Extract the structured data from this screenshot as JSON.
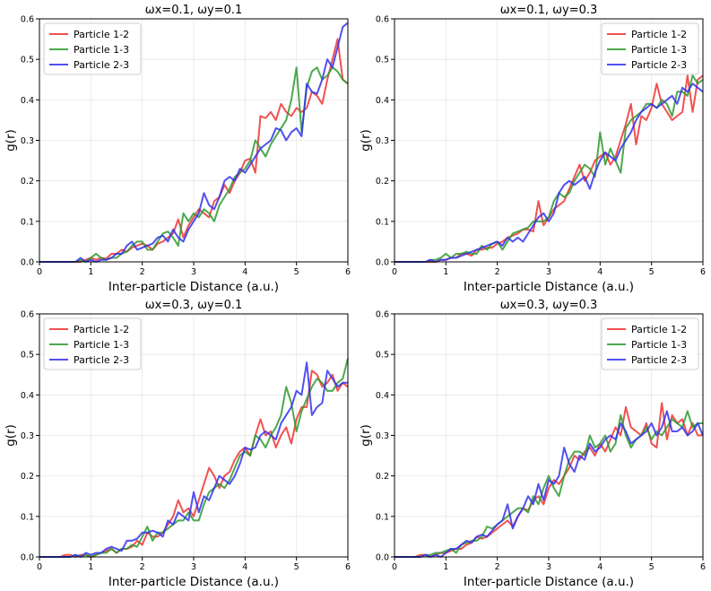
{
  "chart_data": [
    {
      "type": "line",
      "title": "ωx=0.1, ωy=0.1",
      "xlabel": "Inter-particle Distance (a.u.)",
      "ylabel": "g(r)",
      "xlim": [
        0,
        6
      ],
      "ylim": [
        0,
        0.6
      ],
      "xticks": [
        0,
        1,
        2,
        3,
        4,
        5,
        6
      ],
      "yticks": [
        0.0,
        0.1,
        0.2,
        0.3,
        0.4,
        0.5,
        0.6
      ],
      "grid": true,
      "legend": "top-left",
      "x": [
        0.0,
        0.1,
        0.2,
        0.3,
        0.4,
        0.5,
        0.6,
        0.7,
        0.8,
        0.9,
        1.0,
        1.1,
        1.2,
        1.3,
        1.4,
        1.5,
        1.6,
        1.7,
        1.8,
        1.9,
        2.0,
        2.1,
        2.2,
        2.3,
        2.4,
        2.5,
        2.6,
        2.7,
        2.8,
        2.9,
        3.0,
        3.1,
        3.2,
        3.3,
        3.4,
        3.5,
        3.6,
        3.7,
        3.8,
        3.9,
        4.0,
        4.1,
        4.2,
        4.3,
        4.4,
        4.5,
        4.6,
        4.7,
        4.8,
        4.9,
        5.0,
        5.1,
        5.2,
        5.3,
        5.4,
        5.5,
        5.6,
        5.7,
        5.8,
        5.9,
        6.0
      ],
      "series": [
        {
          "name": "Particle 1-2",
          "color": "#ee3333",
          "values": [
            0.0,
            0.0,
            0.0,
            0.0,
            0.0,
            0.0,
            0.0,
            0.0,
            0.0,
            0.005,
            0.01,
            0.005,
            0.01,
            0.008,
            0.02,
            0.02,
            0.03,
            0.025,
            0.035,
            0.04,
            0.045,
            0.04,
            0.03,
            0.045,
            0.05,
            0.06,
            0.07,
            0.105,
            0.06,
            0.09,
            0.11,
            0.13,
            0.12,
            0.11,
            0.15,
            0.16,
            0.19,
            0.17,
            0.2,
            0.22,
            0.25,
            0.255,
            0.22,
            0.36,
            0.355,
            0.37,
            0.35,
            0.39,
            0.37,
            0.36,
            0.38,
            0.37,
            0.38,
            0.42,
            0.41,
            0.39,
            0.45,
            0.5,
            0.55,
            0.45,
            0.44
          ]
        },
        {
          "name": "Particle 1-3",
          "color": "#2e9a2e",
          "values": [
            0.0,
            0.0,
            0.0,
            0.0,
            0.0,
            0.0,
            0.0,
            0.0,
            0.005,
            0.0,
            0.01,
            0.02,
            0.01,
            0.005,
            0.01,
            0.01,
            0.02,
            0.025,
            0.04,
            0.05,
            0.05,
            0.03,
            0.03,
            0.05,
            0.07,
            0.075,
            0.06,
            0.04,
            0.12,
            0.1,
            0.12,
            0.11,
            0.13,
            0.12,
            0.1,
            0.14,
            0.16,
            0.18,
            0.21,
            0.22,
            0.23,
            0.25,
            0.3,
            0.28,
            0.26,
            0.29,
            0.31,
            0.33,
            0.35,
            0.4,
            0.48,
            0.32,
            0.43,
            0.47,
            0.48,
            0.45,
            0.46,
            0.48,
            0.47,
            0.45,
            0.44
          ]
        },
        {
          "name": "Particle 2-3",
          "color": "#3333ee",
          "values": [
            0.0,
            0.0,
            0.0,
            0.0,
            0.0,
            0.0,
            0.0,
            0.0,
            0.01,
            0.0,
            0.005,
            0.0,
            0.005,
            0.005,
            0.01,
            0.02,
            0.02,
            0.04,
            0.05,
            0.03,
            0.035,
            0.04,
            0.045,
            0.06,
            0.065,
            0.05,
            0.08,
            0.06,
            0.05,
            0.08,
            0.1,
            0.12,
            0.17,
            0.14,
            0.13,
            0.16,
            0.2,
            0.21,
            0.2,
            0.23,
            0.22,
            0.24,
            0.26,
            0.28,
            0.29,
            0.3,
            0.33,
            0.325,
            0.3,
            0.32,
            0.33,
            0.31,
            0.44,
            0.42,
            0.415,
            0.45,
            0.5,
            0.48,
            0.53,
            0.58,
            0.59
          ]
        }
      ]
    },
    {
      "type": "line",
      "title": "ωx=0.1, ωy=0.3",
      "xlabel": "Inter-particle Distance (a.u.)",
      "ylabel": "g(r)",
      "xlim": [
        0,
        6
      ],
      "ylim": [
        0,
        0.6
      ],
      "xticks": [
        0,
        1,
        2,
        3,
        4,
        5,
        6
      ],
      "yticks": [
        0.0,
        0.1,
        0.2,
        0.3,
        0.4,
        0.5,
        0.6
      ],
      "grid": true,
      "legend": "top-right",
      "x": [
        0.0,
        0.1,
        0.2,
        0.3,
        0.4,
        0.5,
        0.6,
        0.7,
        0.8,
        0.9,
        1.0,
        1.1,
        1.2,
        1.3,
        1.4,
        1.5,
        1.6,
        1.7,
        1.8,
        1.9,
        2.0,
        2.1,
        2.2,
        2.3,
        2.4,
        2.5,
        2.6,
        2.7,
        2.8,
        2.9,
        3.0,
        3.1,
        3.2,
        3.3,
        3.4,
        3.5,
        3.6,
        3.7,
        3.8,
        3.9,
        4.0,
        4.1,
        4.2,
        4.3,
        4.4,
        4.5,
        4.6,
        4.7,
        4.8,
        4.9,
        5.0,
        5.1,
        5.2,
        5.3,
        5.4,
        5.5,
        5.6,
        5.7,
        5.8,
        5.9,
        6.0
      ],
      "series": [
        {
          "name": "Particle 1-2",
          "color": "#ee3333",
          "values": [
            0.0,
            0.0,
            0.0,
            0.0,
            0.0,
            0.0,
            0.0,
            0.0,
            0.0,
            0.005,
            0.005,
            0.01,
            0.01,
            0.02,
            0.02,
            0.015,
            0.03,
            0.03,
            0.035,
            0.035,
            0.045,
            0.05,
            0.06,
            0.065,
            0.07,
            0.08,
            0.08,
            0.075,
            0.15,
            0.09,
            0.11,
            0.13,
            0.14,
            0.15,
            0.18,
            0.21,
            0.24,
            0.2,
            0.22,
            0.25,
            0.26,
            0.27,
            0.24,
            0.26,
            0.3,
            0.34,
            0.39,
            0.29,
            0.36,
            0.35,
            0.38,
            0.44,
            0.39,
            0.37,
            0.35,
            0.36,
            0.37,
            0.46,
            0.37,
            0.45,
            0.46
          ]
        },
        {
          "name": "Particle 1-3",
          "color": "#2e9a2e",
          "values": [
            0.0,
            0.0,
            0.0,
            0.0,
            0.0,
            0.0,
            0.0,
            0.005,
            0.005,
            0.01,
            0.02,
            0.01,
            0.02,
            0.02,
            0.025,
            0.02,
            0.02,
            0.04,
            0.03,
            0.045,
            0.05,
            0.03,
            0.05,
            0.07,
            0.075,
            0.08,
            0.085,
            0.1,
            0.1,
            0.1,
            0.11,
            0.15,
            0.17,
            0.16,
            0.17,
            0.2,
            0.22,
            0.24,
            0.23,
            0.21,
            0.32,
            0.24,
            0.28,
            0.25,
            0.22,
            0.33,
            0.35,
            0.36,
            0.37,
            0.39,
            0.39,
            0.38,
            0.4,
            0.39,
            0.36,
            0.42,
            0.42,
            0.41,
            0.46,
            0.44,
            0.45
          ]
        },
        {
          "name": "Particle 2-3",
          "color": "#3333ee",
          "values": [
            0.0,
            0.0,
            0.0,
            0.0,
            0.0,
            0.0,
            0.0,
            0.005,
            0.0,
            0.005,
            0.005,
            0.01,
            0.01,
            0.015,
            0.02,
            0.025,
            0.03,
            0.035,
            0.04,
            0.045,
            0.05,
            0.04,
            0.06,
            0.05,
            0.06,
            0.05,
            0.07,
            0.09,
            0.11,
            0.12,
            0.1,
            0.12,
            0.17,
            0.19,
            0.2,
            0.19,
            0.2,
            0.21,
            0.18,
            0.22,
            0.25,
            0.27,
            0.26,
            0.25,
            0.28,
            0.3,
            0.32,
            0.35,
            0.37,
            0.38,
            0.39,
            0.38,
            0.39,
            0.4,
            0.41,
            0.39,
            0.43,
            0.42,
            0.44,
            0.43,
            0.42
          ]
        }
      ]
    },
    {
      "type": "line",
      "title": "ωx=0.3, ωy=0.1",
      "xlabel": "Inter-particle Distance (a.u.)",
      "ylabel": "g(r)",
      "xlim": [
        0,
        6
      ],
      "ylim": [
        0,
        0.6
      ],
      "xticks": [
        0,
        1,
        2,
        3,
        4,
        5,
        6
      ],
      "yticks": [
        0.0,
        0.1,
        0.2,
        0.3,
        0.4,
        0.5,
        0.6
      ],
      "grid": true,
      "legend": "top-left",
      "x": [
        0.0,
        0.1,
        0.2,
        0.3,
        0.4,
        0.5,
        0.6,
        0.7,
        0.8,
        0.9,
        1.0,
        1.1,
        1.2,
        1.3,
        1.4,
        1.5,
        1.6,
        1.7,
        1.8,
        1.9,
        2.0,
        2.1,
        2.2,
        2.3,
        2.4,
        2.5,
        2.6,
        2.7,
        2.8,
        2.9,
        3.0,
        3.1,
        3.2,
        3.3,
        3.4,
        3.5,
        3.6,
        3.7,
        3.8,
        3.9,
        4.0,
        4.1,
        4.2,
        4.3,
        4.4,
        4.5,
        4.6,
        4.7,
        4.8,
        4.9,
        5.0,
        5.1,
        5.2,
        5.3,
        5.4,
        5.5,
        5.6,
        5.7,
        5.8,
        5.9,
        6.0
      ],
      "series": [
        {
          "name": "Particle 1-2",
          "color": "#ee3333",
          "values": [
            0.0,
            0.0,
            0.0,
            0.0,
            0.0,
            0.005,
            0.005,
            0.0,
            0.005,
            0.005,
            0.0,
            0.005,
            0.01,
            0.015,
            0.02,
            0.01,
            0.02,
            0.02,
            0.025,
            0.04,
            0.03,
            0.06,
            0.05,
            0.05,
            0.06,
            0.08,
            0.1,
            0.14,
            0.11,
            0.12,
            0.1,
            0.14,
            0.18,
            0.22,
            0.2,
            0.17,
            0.2,
            0.21,
            0.24,
            0.26,
            0.27,
            0.25,
            0.3,
            0.34,
            0.3,
            0.31,
            0.27,
            0.3,
            0.32,
            0.28,
            0.34,
            0.37,
            0.37,
            0.46,
            0.45,
            0.42,
            0.43,
            0.45,
            0.41,
            0.43,
            0.42
          ]
        },
        {
          "name": "Particle 1-3",
          "color": "#2e9a2e",
          "values": [
            0.0,
            0.0,
            0.0,
            0.0,
            0.0,
            0.0,
            0.0,
            0.005,
            0.0,
            0.005,
            0.0,
            0.005,
            0.01,
            0.01,
            0.02,
            0.01,
            0.02,
            0.02,
            0.03,
            0.025,
            0.05,
            0.075,
            0.04,
            0.06,
            0.06,
            0.07,
            0.08,
            0.09,
            0.09,
            0.11,
            0.09,
            0.09,
            0.13,
            0.16,
            0.17,
            0.18,
            0.17,
            0.19,
            0.22,
            0.25,
            0.26,
            0.25,
            0.3,
            0.29,
            0.27,
            0.3,
            0.32,
            0.35,
            0.42,
            0.38,
            0.31,
            0.36,
            0.39,
            0.42,
            0.44,
            0.43,
            0.41,
            0.41,
            0.43,
            0.44,
            0.49
          ]
        },
        {
          "name": "Particle 2-3",
          "color": "#3333ee",
          "values": [
            0.0,
            0.0,
            0.0,
            0.0,
            0.0,
            0.0,
            0.0,
            0.005,
            0.0,
            0.01,
            0.005,
            0.01,
            0.01,
            0.02,
            0.025,
            0.02,
            0.015,
            0.04,
            0.04,
            0.045,
            0.06,
            0.06,
            0.065,
            0.06,
            0.05,
            0.09,
            0.08,
            0.11,
            0.1,
            0.09,
            0.16,
            0.11,
            0.15,
            0.14,
            0.17,
            0.2,
            0.19,
            0.18,
            0.2,
            0.23,
            0.27,
            0.265,
            0.27,
            0.3,
            0.31,
            0.3,
            0.29,
            0.33,
            0.35,
            0.37,
            0.41,
            0.4,
            0.48,
            0.35,
            0.37,
            0.38,
            0.46,
            0.44,
            0.42,
            0.43,
            0.43
          ]
        }
      ]
    },
    {
      "type": "line",
      "title": "ωx=0.3, ωy=0.3",
      "xlabel": "Inter-particle Distance (a.u.)",
      "ylabel": "g(r)",
      "xlim": [
        0,
        6
      ],
      "ylim": [
        0,
        0.6
      ],
      "xticks": [
        0,
        1,
        2,
        3,
        4,
        5,
        6
      ],
      "yticks": [
        0.0,
        0.1,
        0.2,
        0.3,
        0.4,
        0.5,
        0.6
      ],
      "grid": true,
      "legend": "top-right",
      "x": [
        0.0,
        0.1,
        0.2,
        0.3,
        0.4,
        0.5,
        0.6,
        0.7,
        0.8,
        0.9,
        1.0,
        1.1,
        1.2,
        1.3,
        1.4,
        1.5,
        1.6,
        1.7,
        1.8,
        1.9,
        2.0,
        2.1,
        2.2,
        2.3,
        2.4,
        2.5,
        2.6,
        2.7,
        2.8,
        2.9,
        3.0,
        3.1,
        3.2,
        3.3,
        3.4,
        3.5,
        3.6,
        3.7,
        3.8,
        3.9,
        4.0,
        4.1,
        4.2,
        4.3,
        4.4,
        4.5,
        4.6,
        4.7,
        4.8,
        4.9,
        5.0,
        5.1,
        5.2,
        5.3,
        5.4,
        5.5,
        5.6,
        5.7,
        5.8,
        5.9,
        6.0
      ],
      "series": [
        {
          "name": "Particle 1-2",
          "color": "#ee3333",
          "values": [
            0.0,
            0.0,
            0.0,
            0.0,
            0.0,
            0.005,
            0.005,
            0.0,
            0.005,
            0.01,
            0.01,
            0.015,
            0.02,
            0.02,
            0.03,
            0.035,
            0.05,
            0.045,
            0.05,
            0.06,
            0.07,
            0.08,
            0.09,
            0.075,
            0.1,
            0.12,
            0.115,
            0.14,
            0.15,
            0.13,
            0.17,
            0.19,
            0.18,
            0.2,
            0.22,
            0.25,
            0.24,
            0.26,
            0.27,
            0.25,
            0.28,
            0.26,
            0.29,
            0.32,
            0.3,
            0.37,
            0.32,
            0.31,
            0.3,
            0.33,
            0.28,
            0.27,
            0.38,
            0.29,
            0.35,
            0.33,
            0.34,
            0.3,
            0.33,
            0.3,
            0.3
          ]
        },
        {
          "name": "Particle 1-3",
          "color": "#2e9a2e",
          "values": [
            0.0,
            0.0,
            0.0,
            0.0,
            0.0,
            0.0,
            0.005,
            0.005,
            0.01,
            0.01,
            0.015,
            0.02,
            0.01,
            0.03,
            0.035,
            0.04,
            0.04,
            0.05,
            0.075,
            0.07,
            0.08,
            0.09,
            0.1,
            0.11,
            0.12,
            0.12,
            0.11,
            0.15,
            0.13,
            0.17,
            0.2,
            0.17,
            0.15,
            0.2,
            0.24,
            0.26,
            0.26,
            0.25,
            0.3,
            0.27,
            0.28,
            0.3,
            0.26,
            0.28,
            0.35,
            0.3,
            0.27,
            0.29,
            0.3,
            0.32,
            0.29,
            0.31,
            0.3,
            0.32,
            0.34,
            0.33,
            0.32,
            0.36,
            0.32,
            0.33,
            0.33
          ]
        },
        {
          "name": "Particle 2-3",
          "color": "#3333ee",
          "values": [
            0.0,
            0.0,
            0.0,
            0.0,
            0.0,
            0.0,
            0.005,
            0.0,
            0.005,
            0.0,
            0.01,
            0.02,
            0.02,
            0.03,
            0.04,
            0.035,
            0.05,
            0.055,
            0.05,
            0.065,
            0.08,
            0.09,
            0.13,
            0.07,
            0.1,
            0.12,
            0.15,
            0.13,
            0.18,
            0.14,
            0.19,
            0.18,
            0.2,
            0.27,
            0.23,
            0.21,
            0.25,
            0.24,
            0.28,
            0.26,
            0.27,
            0.29,
            0.3,
            0.29,
            0.33,
            0.31,
            0.28,
            0.29,
            0.3,
            0.31,
            0.33,
            0.3,
            0.32,
            0.36,
            0.31,
            0.31,
            0.32,
            0.3,
            0.31,
            0.33,
            0.3
          ]
        }
      ]
    }
  ]
}
